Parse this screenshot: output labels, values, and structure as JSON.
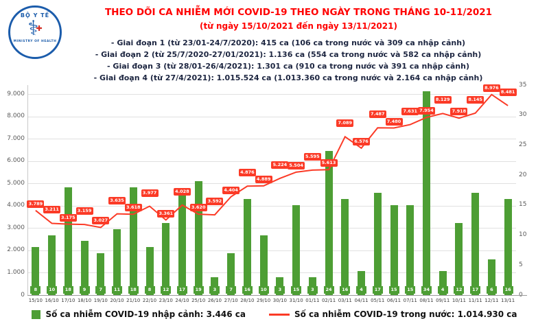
{
  "header": {
    "logo": {
      "top": "BỘ Y TẾ",
      "bottom": "MINISTRY OF HEALTH",
      "symbol": "⚕"
    },
    "title": "THEO DÕI CA NHIỄM MỚI COVID-19 THEO NGÀY TRONG THÁNG 10-11/2021",
    "subtitle": "(từ ngày 15/10/2021 đến ngày 13/11/2021)",
    "bullets": [
      "- Giai đoạn 1 (từ 23/01-24/7/2020): 415 ca (106 ca trong nước và 309 ca nhập cảnh)",
      "- Giai đoạn 2 (từ 25/7/2020-27/01/2021): 1.136 ca (554 ca trong nước và 582 ca nhập cảnh)",
      "- Giai đoạn 3 (từ 28/01-26/4/2021): 1.301 ca (910 ca trong nước và 391 ca nhập cảnh)",
      "- Giai đoạn 4 (từ 27/4/2021): 1.015.524 ca (1.013.360 ca trong nước và 2.164 ca nhập cảnh)"
    ]
  },
  "chart_data": {
    "type": "bar+line",
    "title": "THEO DÕI CA NHIỄM MỚI COVID-19 THEO NGÀY TRONG THÁNG 10-11/2021",
    "categories": [
      "15/10",
      "16/10",
      "17/10",
      "18/10",
      "19/10",
      "20/10",
      "21/10",
      "22/10",
      "23/10",
      "24/10",
      "25/10",
      "26/10",
      "27/10",
      "28/10",
      "29/10",
      "30/10",
      "31/10",
      "01/11",
      "02/11",
      "03/11",
      "04/11",
      "05/11",
      "06/11",
      "07/11",
      "08/11",
      "09/11",
      "10/11",
      "11/11",
      "12/11",
      "13/11"
    ],
    "series": [
      {
        "name": "Số ca nhiễm COVID-19 nhập cảnh",
        "type": "bar",
        "axis": "right",
        "color": "#4d9e34",
        "values": [
          8,
          10,
          18,
          9,
          7,
          11,
          18,
          8,
          12,
          17,
          19,
          3,
          7,
          16,
          10,
          3,
          15,
          3,
          24,
          16,
          4,
          17,
          15,
          15,
          34,
          4,
          12,
          17,
          6,
          16
        ]
      },
      {
        "name": "Số ca nhiễm COVID-19 trong nước",
        "type": "line",
        "axis": "left",
        "color": "#fb3a26",
        "values": [
          3789,
          3211,
          3175,
          3159,
          3027,
          3635,
          3618,
          3977,
          3361,
          4028,
          3620,
          3592,
          4404,
          4876,
          4889,
          5224,
          5504,
          5595,
          5613,
          7089,
          6576,
          7487,
          7480,
          7631,
          7954,
          8129,
          7918,
          8145,
          8976,
          8481
        ],
        "labels": [
          "3.789",
          "3.211",
          "3.175",
          "3.159",
          "3.027",
          "3.635",
          "3.618",
          "3.977",
          "3.361",
          "4.028",
          "3.620",
          "3.592",
          "4.404",
          "4.876",
          "4.889",
          "5.224",
          "5.504",
          "5.595",
          "5.613",
          "7.089",
          "6.576",
          "7.487",
          "7.480",
          "7.631",
          "7.954",
          "8.129",
          "7.918",
          "8.145",
          "8.976",
          "8.481"
        ]
      }
    ],
    "left_axis": {
      "ticks": [
        "9.000",
        "8.000",
        "7.000",
        "6.000",
        "5.000",
        "4.000",
        "3.000",
        "2.000",
        "1.000",
        "0"
      ],
      "max": 9400,
      "grid": true
    },
    "right_axis": {
      "ticks": [
        "35",
        "30",
        "25",
        "20",
        "15",
        "10",
        "5",
        "0"
      ],
      "max": 35
    },
    "legend_position": "bottom"
  },
  "legend": {
    "bar_label": "Số ca nhiễm COVID-19 nhập cảnh: 3.446 ca",
    "line_label": "Số ca nhiễm COVID-19 trong nước: 1.014.930 ca"
  }
}
